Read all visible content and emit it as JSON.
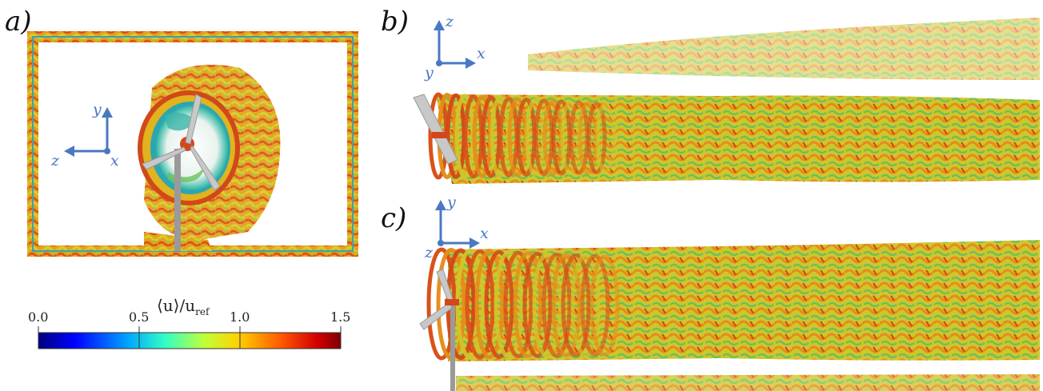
{
  "panels": {
    "a": {
      "label": "a)",
      "axes": {
        "up": "y",
        "left": "z",
        "origin": "x"
      }
    },
    "b": {
      "label": "b)",
      "axes": {
        "up": "z",
        "right": "x",
        "origin": "y"
      }
    },
    "c": {
      "label": "c)",
      "axes": {
        "up": "y",
        "right": "x",
        "origin": "z"
      }
    }
  },
  "colorbar": {
    "title_main": "⟨u⟩/u",
    "title_sub": "ref",
    "ticks": [
      "0.0",
      "0.5",
      "1.0",
      "1.5"
    ],
    "tick_values": [
      0.0,
      0.5,
      1.0,
      1.5
    ],
    "range": [
      0.0,
      1.5
    ],
    "colormap": "jet",
    "colors": [
      "#00007f",
      "#0000ff",
      "#00a8ff",
      "#34ffc4",
      "#c0ff37",
      "#ffd200",
      "#ff5a00",
      "#d40000",
      "#7f0000"
    ]
  },
  "style": {
    "axis_color": "#4a78c2",
    "blade_color": "#c8c8c8",
    "wake_colors": [
      "#d4d02a",
      "#e89a1c",
      "#d8521a",
      "#9ccb3a",
      "#36c8b4",
      "#f0c828"
    ]
  }
}
